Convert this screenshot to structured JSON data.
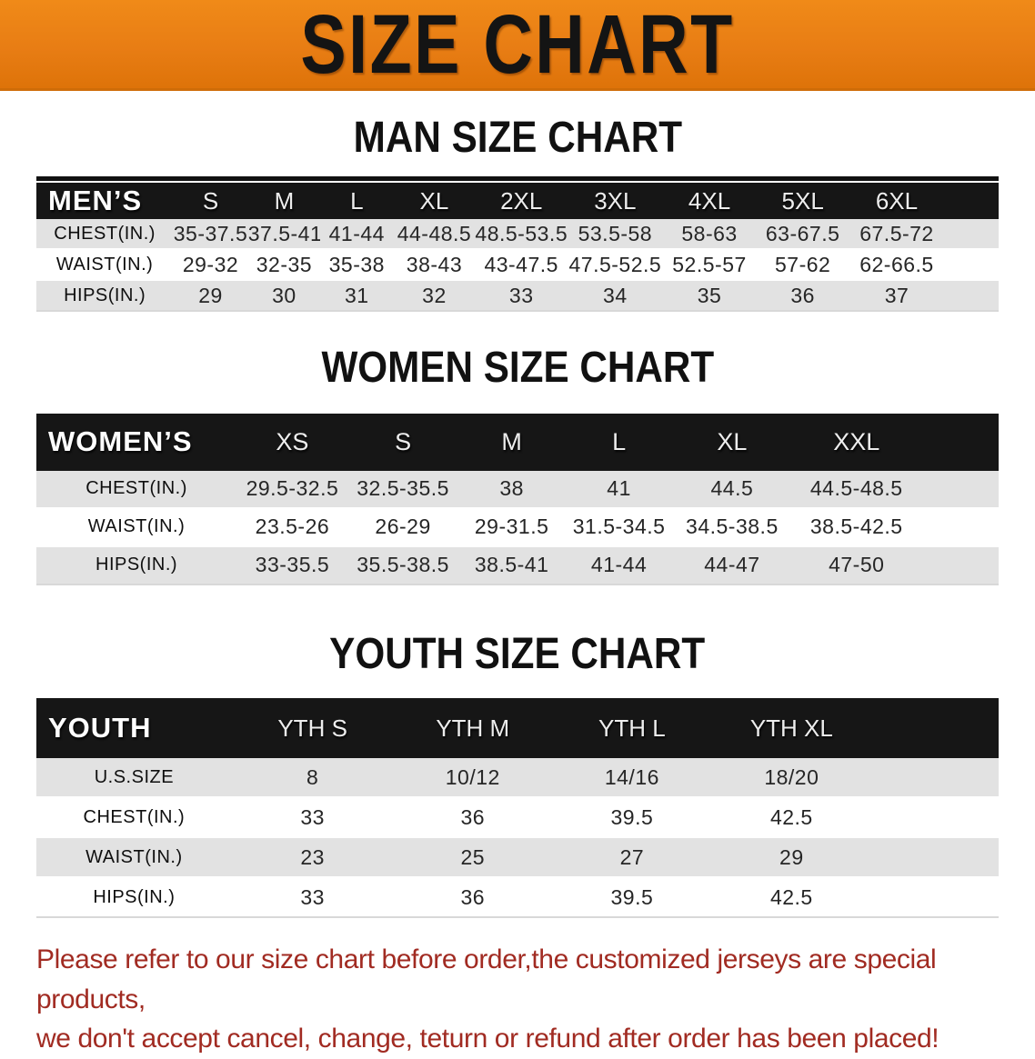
{
  "banner": {
    "title": "SIZE CHART"
  },
  "sections": [
    {
      "heading": "MAN SIZE CHART",
      "table": {
        "label": "MEN’S",
        "columns": [
          "S",
          "M",
          "L",
          "XL",
          "2XL",
          "3XL",
          "4XL",
          "5XL",
          "6XL"
        ],
        "rows": [
          {
            "label": "CHEST(IN.)",
            "values": [
              "35-37.5",
              "37.5-41",
              "41-44",
              "44-48.5",
              "48.5-53.5",
              "53.5-58",
              "58-63",
              "63-67.5",
              "67.5-72"
            ]
          },
          {
            "label": "WAIST(IN.)",
            "values": [
              "29-32",
              "32-35",
              "35-38",
              "38-43",
              "43-47.5",
              "47.5-52.5",
              "52.5-57",
              "57-62",
              "62-66.5"
            ]
          },
          {
            "label": "HIPS(IN.)",
            "values": [
              "29",
              "30",
              "31",
              "32",
              "33",
              "34",
              "35",
              "36",
              "37"
            ]
          }
        ]
      }
    },
    {
      "heading": "WOMEN SIZE CHART",
      "table": {
        "label": "WOMEN’S",
        "columns": [
          "XS",
          "S",
          "M",
          "L",
          "XL",
          "XXL"
        ],
        "rows": [
          {
            "label": "CHEST(IN.)",
            "values": [
              "29.5-32.5",
              "32.5-35.5",
              "38",
              "41",
              "44.5",
              "44.5-48.5"
            ]
          },
          {
            "label": "WAIST(IN.)",
            "values": [
              "23.5-26",
              "26-29",
              "29-31.5",
              "31.5-34.5",
              "34.5-38.5",
              "38.5-42.5"
            ]
          },
          {
            "label": "HIPS(IN.)",
            "values": [
              "33-35.5",
              "35.5-38.5",
              "38.5-41",
              "41-44",
              "44-47",
              "47-50"
            ]
          }
        ]
      }
    },
    {
      "heading": "YOUTH SIZE CHART",
      "table": {
        "label": "YOUTH",
        "columns": [
          "YTH S",
          "YTH M",
          "YTH L",
          "YTH XL"
        ],
        "rows": [
          {
            "label": "U.S.SIZE",
            "values": [
              "8",
              "10/12",
              "14/16",
              "18/20"
            ]
          },
          {
            "label": "CHEST(IN.)",
            "values": [
              "33",
              "36",
              "39.5",
              "42.5"
            ]
          },
          {
            "label": "WAIST(IN.)",
            "values": [
              "23",
              "25",
              "27",
              "29"
            ]
          },
          {
            "label": "HIPS(IN.)",
            "values": [
              "33",
              "36",
              "39.5",
              "42.5"
            ]
          }
        ]
      }
    }
  ],
  "footer": {
    "line1": "Please refer to our size chart before order,the customized jerseys are special products,",
    "line2": "we don't accept cancel, change, teturn or refund after order has been placed!"
  },
  "colors": {
    "banner_orange": "#E87D14",
    "header_black": "#161616",
    "row_gray": "#E2E2E2",
    "notice_red": "#A12B22"
  }
}
